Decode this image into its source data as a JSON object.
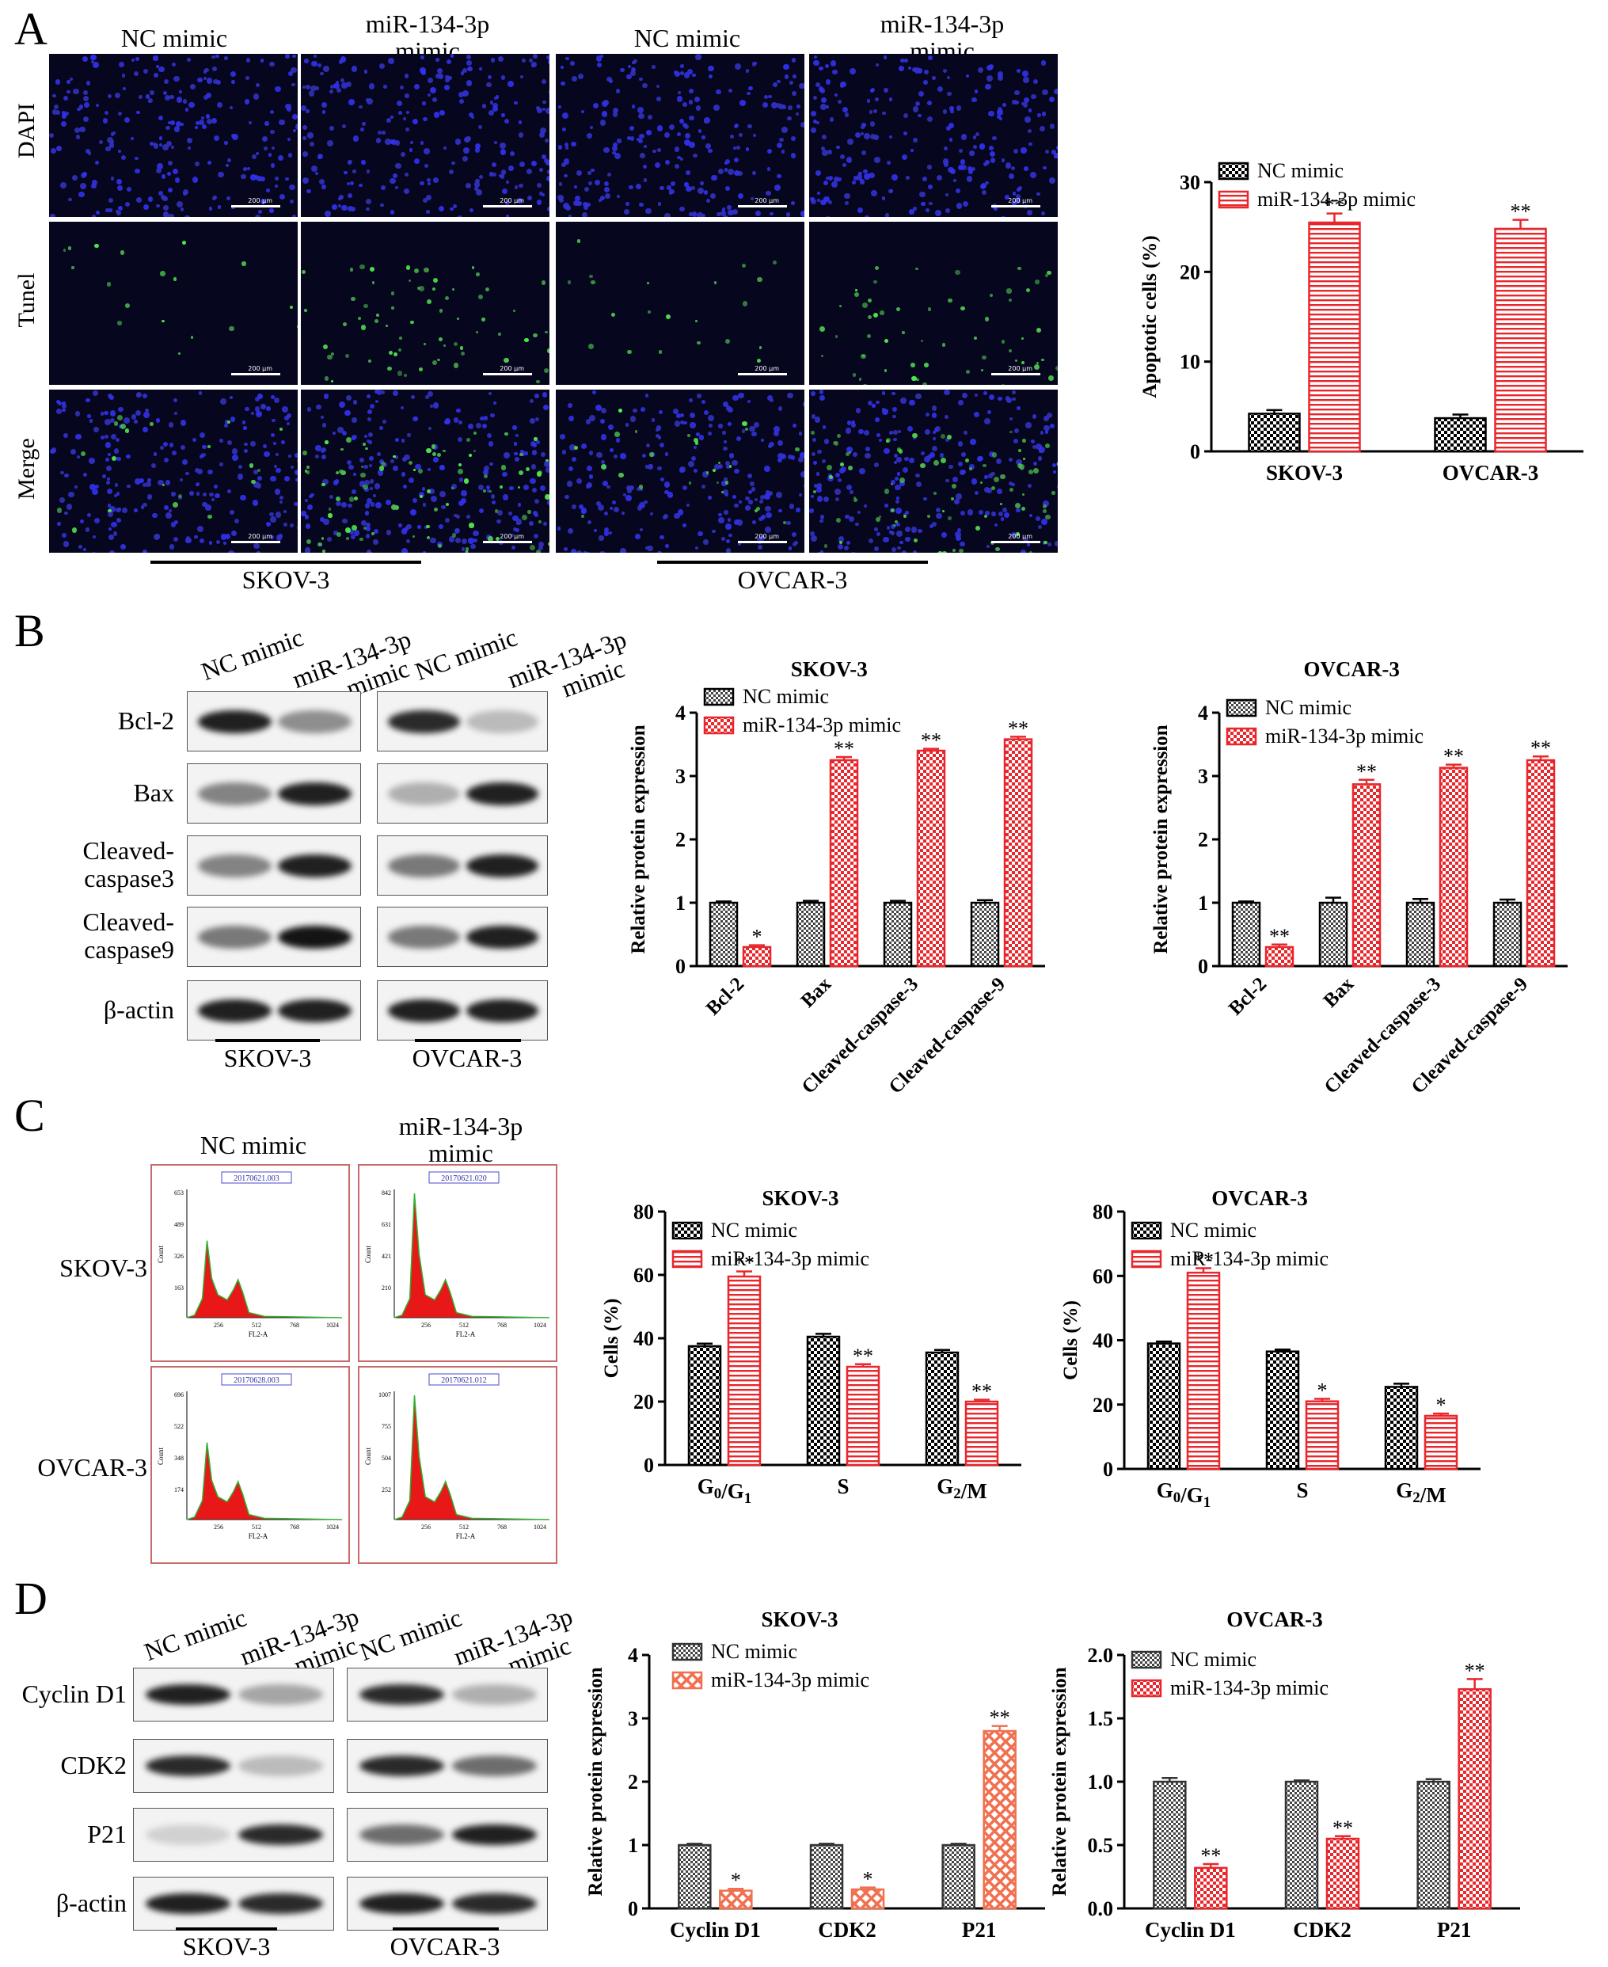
{
  "panels": {
    "a": "A",
    "b": "B",
    "c": "C",
    "d": "D"
  },
  "groups": {
    "nc": "NC mimic",
    "mir_line1": "miR-134-3p",
    "mir_line2": "mimic",
    "skov": "SKOV-3",
    "ovcar": "OVCAR-3"
  },
  "panel_a": {
    "rows": [
      "DAPI",
      "Tunel",
      "Merge"
    ],
    "scale_bar": "200 μm"
  },
  "panel_b": {
    "proteins": [
      "Bcl-2",
      "Bax",
      "Cleaved-\ncaspase3",
      "Cleaved-\ncaspase9",
      "β-actin"
    ]
  },
  "panel_c": {
    "flow_ids": [
      "20170621.003",
      "20170621.020",
      "20170628.003",
      "20170621.012"
    ],
    "flow_xlabel": "FL2-A",
    "flow_xticks": [
      "256",
      "512",
      "768",
      "1024"
    ],
    "flow_yticks": [
      [
        "653",
        "489",
        "326",
        "163"
      ],
      [
        "842",
        "631",
        "421",
        "210"
      ],
      [
        "696",
        "522",
        "348",
        "174"
      ],
      [
        "1007",
        "755",
        "504",
        "252"
      ]
    ],
    "flow_ylabel": "Count"
  },
  "panel_d": {
    "proteins": [
      "Cyclin D1",
      "CDK2",
      "P21",
      "β-actin"
    ]
  },
  "colors": {
    "red": "#e8262b",
    "black": "#000000",
    "dapi": "#2020d0",
    "tunel": "#3ccc3c"
  },
  "chart_data": [
    {
      "type": "bar",
      "id": "a",
      "ylabel": "Apoptotic cells (%)",
      "categories": [
        "SKOV-3",
        "OVCAR-3"
      ],
      "ylim": [
        0,
        30
      ],
      "yticks": [
        0,
        10,
        20,
        30
      ],
      "legend": [
        "NC mimic",
        "miR-134-3p mimic"
      ],
      "series": [
        {
          "name": "NC mimic",
          "values": [
            4.2,
            3.7
          ]
        },
        {
          "name": "miR-134-3p mimic",
          "values": [
            25.5,
            24.8
          ]
        }
      ],
      "errors": [
        [
          0.4,
          0.4
        ],
        [
          1.0,
          1.0
        ]
      ],
      "sig": [
        [
          "",
          ""
        ],
        [
          "**",
          "**"
        ]
      ]
    },
    {
      "type": "bar",
      "id": "b1",
      "title": "SKOV-3",
      "ylabel": "Relative protein expression",
      "categories": [
        "Bcl-2",
        "Bax",
        "Cleaved-caspase-3",
        "Cleaved-caspase-9"
      ],
      "ylim": [
        0,
        4
      ],
      "yticks": [
        0,
        1,
        2,
        3,
        4
      ],
      "legend": [
        "NC mimic",
        "miR-134-3p mimic"
      ],
      "series": [
        {
          "name": "NC mimic",
          "values": [
            1.0,
            1.0,
            1.0,
            1.0
          ]
        },
        {
          "name": "miR-134-3p mimic",
          "values": [
            0.3,
            3.25,
            3.4,
            3.58
          ]
        }
      ],
      "errors": [
        [
          0.02,
          0.03,
          0.03,
          0.04
        ],
        [
          0.03,
          0.05,
          0.03,
          0.04
        ]
      ],
      "sig": [
        [
          "",
          "",
          "",
          ""
        ],
        [
          "*",
          "**",
          "**",
          "**"
        ]
      ]
    },
    {
      "type": "bar",
      "id": "b2",
      "title": "OVCAR-3",
      "ylabel": "Relative protein expression",
      "categories": [
        "Bcl-2",
        "Bax",
        "Cleaved-caspase-3",
        "Cleaved-caspase-9"
      ],
      "ylim": [
        0,
        4
      ],
      "yticks": [
        0,
        1,
        2,
        3,
        4
      ],
      "legend": [
        "NC mimic",
        "miR-134-3p mimic"
      ],
      "series": [
        {
          "name": "NC mimic",
          "values": [
            1.0,
            1.0,
            1.0,
            1.0
          ]
        },
        {
          "name": "miR-134-3p mimic",
          "values": [
            0.3,
            2.87,
            3.13,
            3.25
          ]
        }
      ],
      "errors": [
        [
          0.02,
          0.08,
          0.06,
          0.05
        ],
        [
          0.04,
          0.07,
          0.05,
          0.06
        ]
      ],
      "sig": [
        [
          "",
          "",
          "",
          ""
        ],
        [
          "**",
          "**",
          "**",
          "**"
        ]
      ]
    },
    {
      "type": "bar",
      "id": "c1",
      "title": "SKOV-3",
      "ylabel": "Cells (%)",
      "categories": [
        "G0/G1",
        "S",
        "G2/M"
      ],
      "ylim": [
        0,
        80
      ],
      "yticks": [
        0,
        20,
        40,
        60,
        80
      ],
      "legend": [
        "NC mimic",
        "miR-134-3p mimic"
      ],
      "series": [
        {
          "name": "NC mimic",
          "values": [
            37.5,
            40.5,
            35.5
          ]
        },
        {
          "name": "miR-134-3p mimic",
          "values": [
            59.5,
            31.0,
            20.0
          ]
        }
      ],
      "errors": [
        [
          0.8,
          0.9,
          0.8
        ],
        [
          1.6,
          0.8,
          0.6
        ]
      ],
      "sig": [
        [
          "",
          "",
          ""
        ],
        [
          "**",
          "**",
          "**"
        ]
      ]
    },
    {
      "type": "bar",
      "id": "c2",
      "title": "OVCAR-3",
      "ylabel": "Cells (%)",
      "categories": [
        "G0/G1",
        "S",
        "G2/M"
      ],
      "ylim": [
        0,
        80
      ],
      "yticks": [
        0,
        20,
        40,
        60,
        80
      ],
      "legend": [
        "NC mimic",
        "miR-134-3p mimic"
      ],
      "series": [
        {
          "name": "NC mimic",
          "values": [
            39.0,
            36.5,
            25.5
          ]
        },
        {
          "name": "miR-134-3p mimic",
          "values": [
            61.0,
            21.0,
            16.5
          ]
        }
      ],
      "errors": [
        [
          0.6,
          0.6,
          1.0
        ],
        [
          1.4,
          0.8,
          0.7
        ]
      ],
      "sig": [
        [
          "",
          "",
          ""
        ],
        [
          "**",
          "*",
          "*"
        ]
      ]
    },
    {
      "type": "bar",
      "id": "d1",
      "title": "SKOV-3",
      "ylabel": "Relative protein expression",
      "categories": [
        "Cyclin D1",
        "CDK2",
        "P21"
      ],
      "ylim": [
        0,
        4
      ],
      "yticks": [
        0,
        1,
        2,
        3,
        4
      ],
      "legend": [
        "NC mimic",
        "miR-134-3p mimic"
      ],
      "series": [
        {
          "name": "NC mimic",
          "values": [
            1.0,
            1.0,
            1.0
          ]
        },
        {
          "name": "miR-134-3p mimic",
          "values": [
            0.28,
            0.3,
            2.8
          ]
        }
      ],
      "errors": [
        [
          0.02,
          0.02,
          0.02
        ],
        [
          0.03,
          0.03,
          0.08
        ]
      ],
      "sig": [
        [
          "",
          "",
          ""
        ],
        [
          "*",
          "*",
          "**"
        ]
      ]
    },
    {
      "type": "bar",
      "id": "d2",
      "title": "OVCAR-3",
      "ylabel": "Relative protein expression",
      "categories": [
        "Cyclin D1",
        "CDK2",
        "P21"
      ],
      "ylim": [
        0,
        2.0
      ],
      "yticks": [
        "0.0",
        "0.5",
        "1.0",
        "1.5",
        "2.0"
      ],
      "legend": [
        "NC mimic",
        "miR-134-3p mimic"
      ],
      "series": [
        {
          "name": "NC mimic",
          "values": [
            1.0,
            1.0,
            1.0
          ]
        },
        {
          "name": "miR-134-3p mimic",
          "values": [
            0.32,
            0.55,
            1.73
          ]
        }
      ],
      "errors": [
        [
          0.03,
          0.01,
          0.02
        ],
        [
          0.03,
          0.02,
          0.08
        ]
      ],
      "sig": [
        [
          "",
          "",
          ""
        ],
        [
          "**",
          "**",
          "**"
        ]
      ]
    }
  ]
}
